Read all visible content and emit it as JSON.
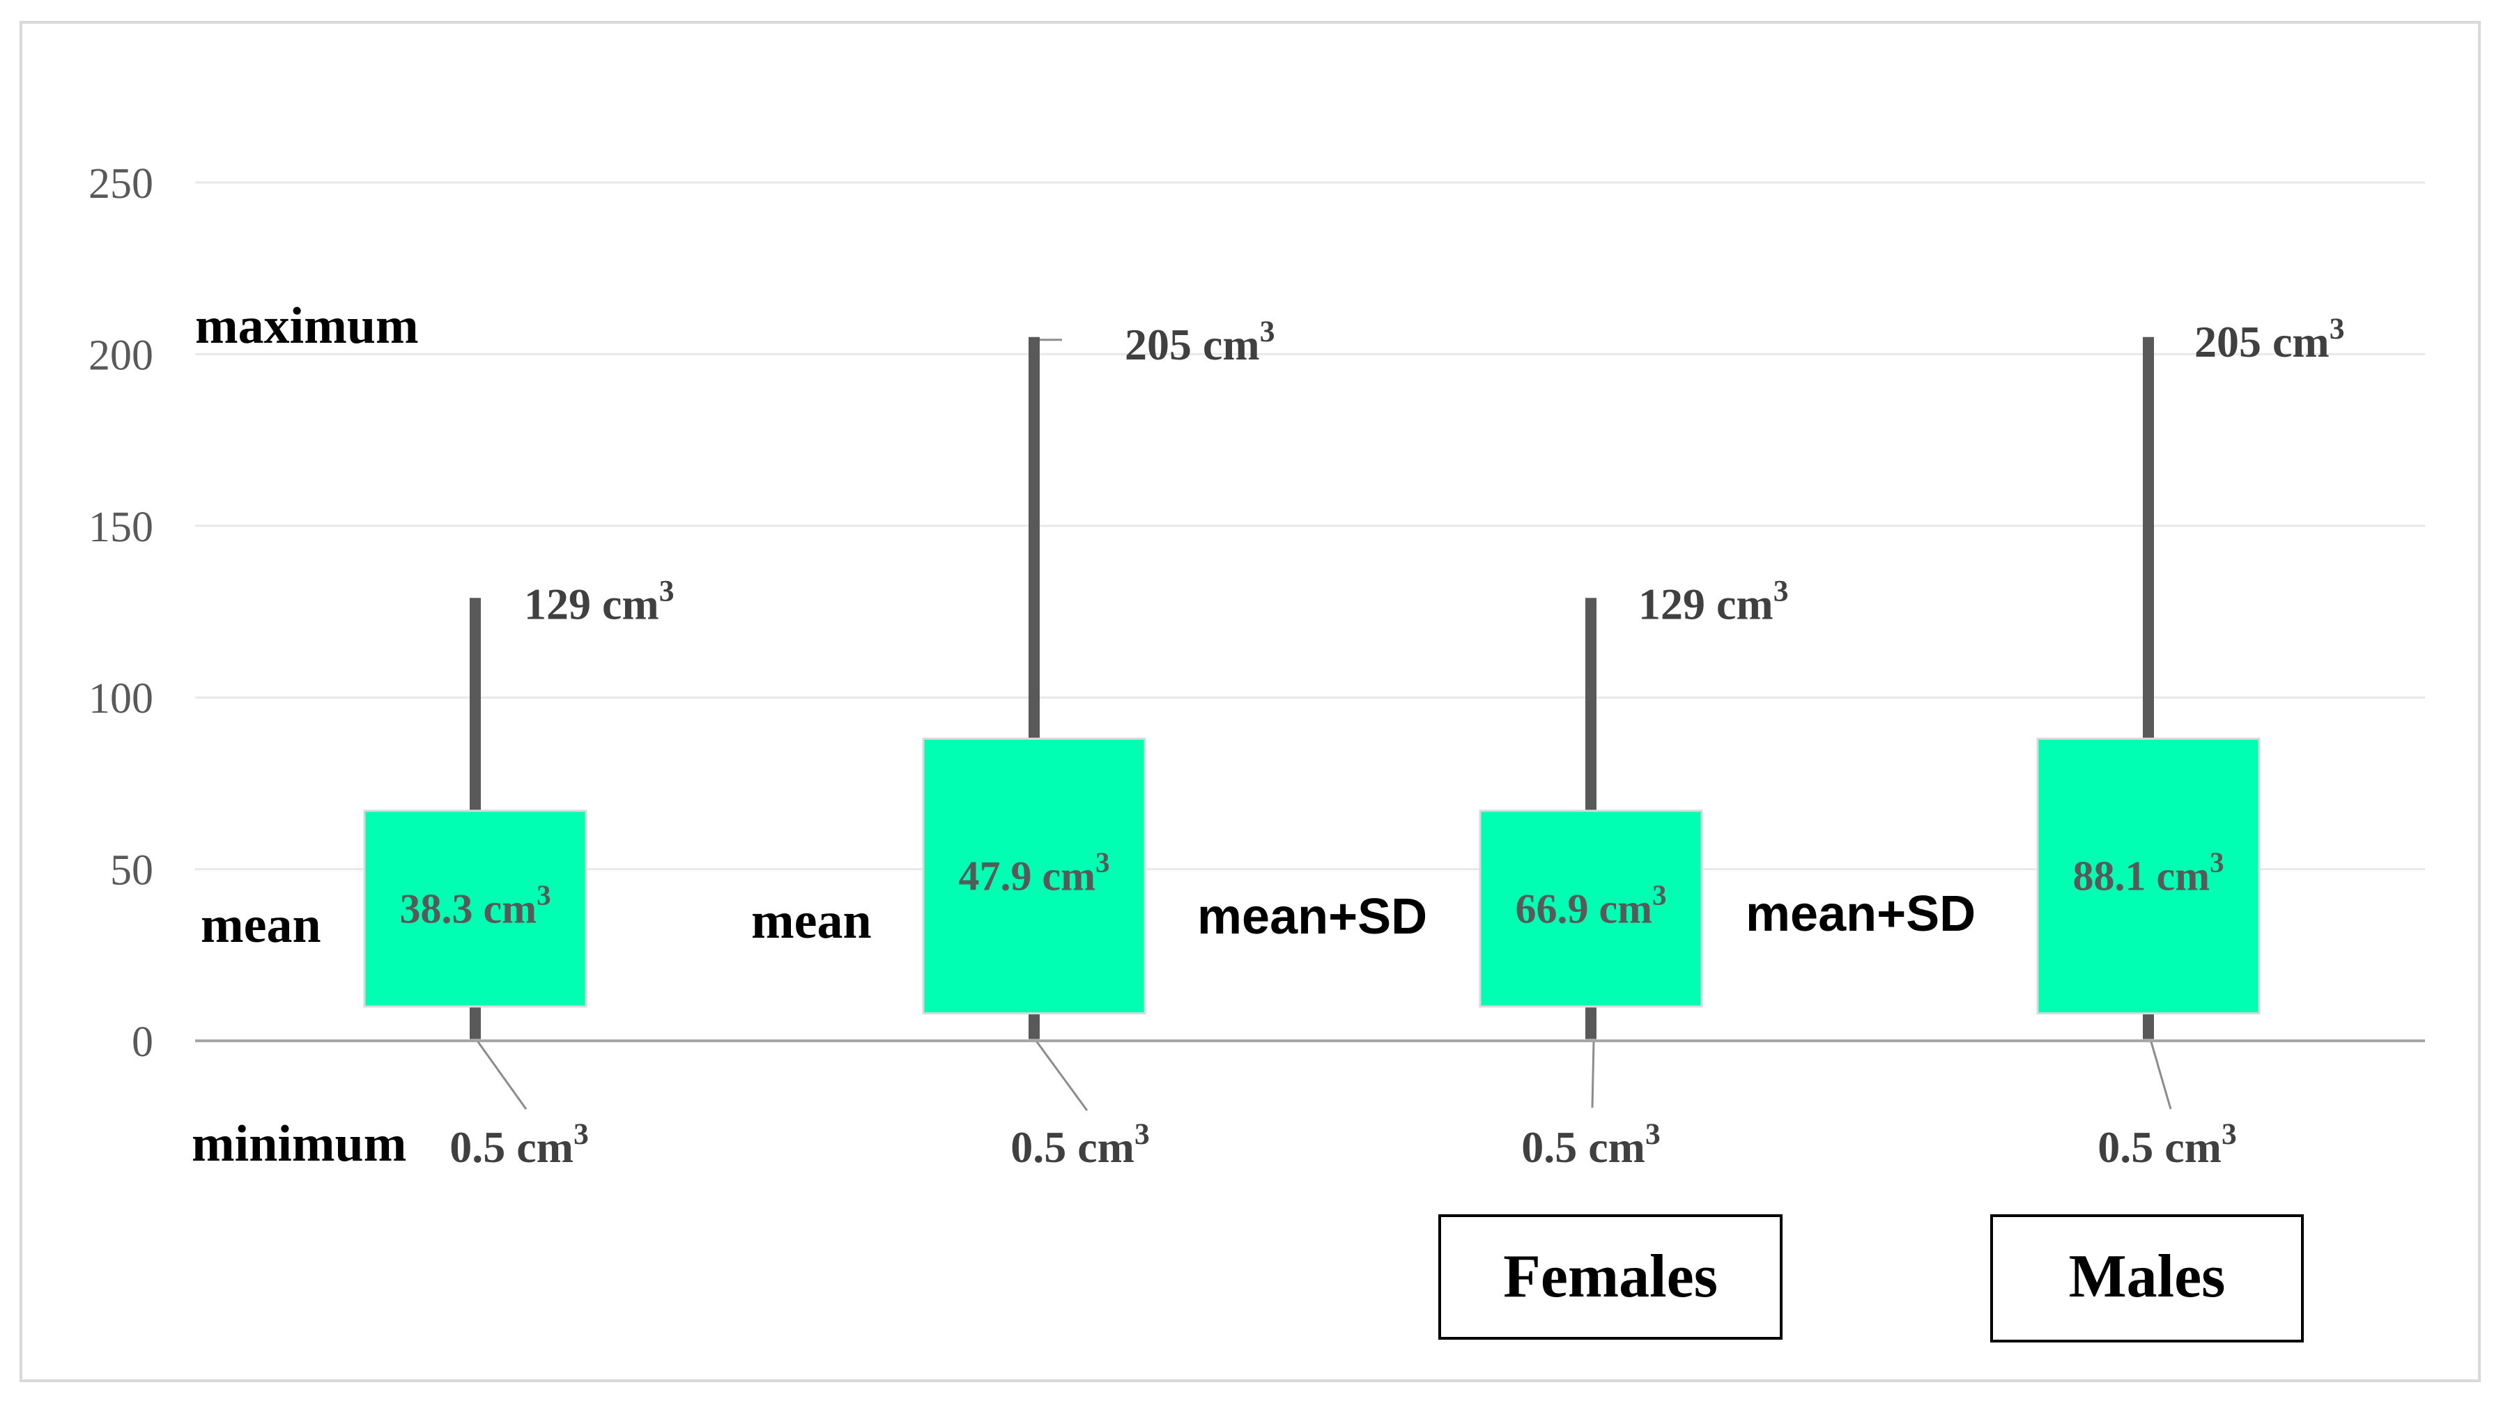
{
  "chart_data": {
    "type": "box",
    "ylim": [
      0,
      250
    ],
    "yticks": [
      "0",
      "50",
      "100",
      "150",
      "200",
      "250"
    ],
    "grid": true,
    "box_color": "#00FFB3",
    "whisker_color": "#595959",
    "side_labels": {
      "maximum": "maximum",
      "minimum": "minimum",
      "mean": "mean",
      "mean_sd": "mean+SD"
    },
    "unit": "cm",
    "unit_sup": "3",
    "groups": [
      {
        "name": "Females",
        "label": "Females"
      },
      {
        "name": "Males",
        "label": "Males"
      }
    ],
    "series": [
      {
        "name": "Females mean",
        "group": "Females",
        "statistic": "mean",
        "box_value": 38.3,
        "box_text": "38.3 cm",
        "min": 0.5,
        "min_text": "0.5 cm",
        "max": 129,
        "max_text": "129 cm",
        "box_low": 10,
        "box_high": 67
      },
      {
        "name": "Males mean",
        "group": "Males",
        "statistic": "mean",
        "box_value": 47.9,
        "box_text": "47.9 cm",
        "min": 0.5,
        "min_text": "0.5 cm",
        "max": 205,
        "max_text": "205 cm",
        "box_low": 8,
        "box_high": 88
      },
      {
        "name": "Females mean+SD",
        "group": "Females",
        "statistic": "mean+SD",
        "box_value": 66.9,
        "box_text": "66.9 cm",
        "min": 0.5,
        "min_text": "0.5 cm",
        "max": 129,
        "max_text": "129 cm",
        "box_low": 10,
        "box_high": 67
      },
      {
        "name": "Males mean+SD",
        "group": "Males",
        "statistic": "mean+SD",
        "box_value": 88.1,
        "box_text": "88.1 cm",
        "min": 0.5,
        "min_text": "0.5 cm",
        "max": 205,
        "max_text": "205 cm",
        "box_low": 8,
        "box_high": 88
      }
    ]
  }
}
